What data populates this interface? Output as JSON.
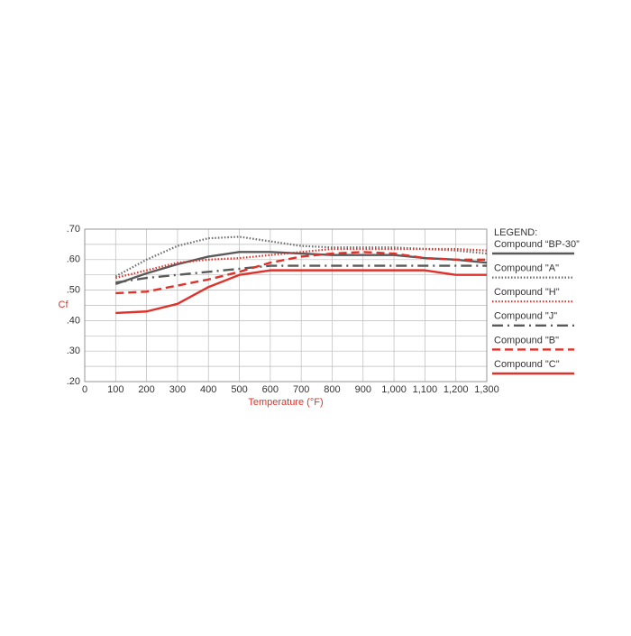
{
  "chart_data": {
    "type": "line",
    "xlabel": "Temperature (°F)",
    "ylabel": "Cf",
    "legend_title": "LEGEND:",
    "legend": "right",
    "grid": true,
    "x": [
      100,
      200,
      300,
      400,
      500,
      600,
      700,
      800,
      900,
      1000,
      1100,
      1200,
      1300
    ],
    "xlim": [
      0,
      1300
    ],
    "xticks": [
      0,
      100,
      200,
      300,
      400,
      500,
      600,
      700,
      800,
      900,
      {
        "value": 1000,
        "label": "1,000"
      },
      {
        "value": 1100,
        "label": "1,100"
      },
      {
        "value": 1200,
        "label": "1,200"
      },
      {
        "value": 1300,
        "label": "1,300"
      }
    ],
    "ylim": [
      0.2,
      0.7
    ],
    "yticks": [
      {
        "value": 0.2,
        "label": ".20"
      },
      {
        "value": 0.3,
        "label": ".30"
      },
      {
        "value": 0.4,
        "label": ".40"
      },
      {
        "value": 0.5,
        "label": ".50"
      },
      {
        "value": 0.6,
        "label": ".60"
      },
      {
        "value": 0.7,
        "label": ".70"
      }
    ],
    "ygrid": [
      0.25,
      0.35,
      0.45,
      0.55,
      0.65
    ],
    "series": [
      {
        "name": "Compound “BP-30”",
        "color": "#5a5a5a",
        "dash": "solid",
        "values": [
          0.52,
          0.555,
          0.585,
          0.61,
          0.625,
          0.625,
          0.62,
          0.615,
          0.615,
          0.615,
          0.605,
          0.6,
          0.59
        ]
      },
      {
        "name": "Compound \"A\"",
        "color": "#6a6a6a",
        "dash": "dotted",
        "values": [
          0.545,
          0.6,
          0.645,
          0.67,
          0.675,
          0.66,
          0.645,
          0.64,
          0.64,
          0.64,
          0.635,
          0.63,
          0.62
        ]
      },
      {
        "name": "Compound \"H\"",
        "color": "#e0322a",
        "dash": "dotted",
        "values": [
          0.54,
          0.565,
          0.59,
          0.6,
          0.605,
          0.615,
          0.625,
          0.635,
          0.635,
          0.635,
          0.635,
          0.635,
          0.63
        ]
      },
      {
        "name": "Compound \"J\"",
        "color": "#5a5a5a",
        "dash": "dashdot",
        "values": [
          0.525,
          0.54,
          0.55,
          0.56,
          0.57,
          0.58,
          0.58,
          0.58,
          0.58,
          0.58,
          0.58,
          0.58,
          0.58
        ]
      },
      {
        "name": "Compound \"B\"",
        "color": "#e0322a",
        "dash": "dashed",
        "values": [
          0.49,
          0.495,
          0.515,
          0.535,
          0.56,
          0.59,
          0.61,
          0.62,
          0.625,
          0.62,
          0.605,
          0.6,
          0.6
        ]
      },
      {
        "name": "Compound \"C\"",
        "color": "#e0322a",
        "dash": "solid",
        "values": [
          0.425,
          0.43,
          0.455,
          0.51,
          0.55,
          0.565,
          0.565,
          0.565,
          0.565,
          0.565,
          0.565,
          0.55,
          0.55
        ]
      }
    ]
  }
}
